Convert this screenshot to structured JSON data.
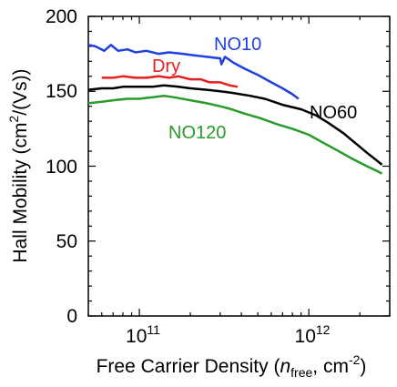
{
  "chart_data": {
    "type": "line",
    "xscale": "log",
    "xlim": [
      50000000000.0,
      3000000000000.0
    ],
    "ylim": [
      0,
      200
    ],
    "grid": false,
    "xlabel": {
      "prefix": "Free Carrier Density (",
      "var": "n",
      "sub": "free",
      "mid": ", cm",
      "sup": "-2",
      "suffix": ")"
    },
    "ylabel": {
      "prefix": "Hall Mobility (cm",
      "sup": "2",
      "suffix": "/(Vs))"
    },
    "yticks": [
      "0",
      "50",
      "100",
      "150",
      "200"
    ],
    "xticks": [
      {
        "base": "10",
        "exp": "11",
        "value": 100000000000.0
      },
      {
        "base": "10",
        "exp": "12",
        "value": 1000000000000.0
      }
    ],
    "series": [
      {
        "name": "NO10",
        "color": "#1f3fe0",
        "points": [
          [
            50000000000.0,
            181
          ],
          [
            55000000000.0,
            180
          ],
          [
            62000000000.0,
            177
          ],
          [
            68000000000.0,
            181
          ],
          [
            75000000000.0,
            177
          ],
          [
            85000000000.0,
            178
          ],
          [
            95000000000.0,
            176
          ],
          [
            110000000000.0,
            177
          ],
          [
            130000000000.0,
            175
          ],
          [
            150000000000.0,
            176
          ],
          [
            180000000000.0,
            175
          ],
          [
            210000000000.0,
            174
          ],
          [
            250000000000.0,
            173
          ],
          [
            300000000000.0,
            172
          ],
          [
            305000000000.0,
            168
          ],
          [
            320000000000.0,
            173
          ],
          [
            360000000000.0,
            169
          ],
          [
            420000000000.0,
            165
          ],
          [
            500000000000.0,
            161
          ],
          [
            600000000000.0,
            156
          ],
          [
            700000000000.0,
            152
          ],
          [
            800000000000.0,
            148
          ],
          [
            870000000000.0,
            145
          ]
        ]
      },
      {
        "name": "Dry",
        "color": "#e62020",
        "points": [
          [
            60000000000.0,
            159
          ],
          [
            70000000000.0,
            159
          ],
          [
            80000000000.0,
            160
          ],
          [
            95000000000.0,
            159
          ],
          [
            110000000000.0,
            159
          ],
          [
            130000000000.0,
            160
          ],
          [
            150000000000.0,
            159
          ],
          [
            170000000000.0,
            160
          ],
          [
            200000000000.0,
            158
          ],
          [
            230000000000.0,
            158
          ],
          [
            260000000000.0,
            156
          ],
          [
            300000000000.0,
            156
          ],
          [
            340000000000.0,
            154
          ],
          [
            380000000000.0,
            153
          ]
        ]
      },
      {
        "name": "NO60",
        "color": "#000000",
        "points": [
          [
            50000000000.0,
            151
          ],
          [
            60000000000.0,
            152
          ],
          [
            70000000000.0,
            152
          ],
          [
            80000000000.0,
            153
          ],
          [
            100000000000.0,
            153
          ],
          [
            120000000000.0,
            153
          ],
          [
            140000000000.0,
            154
          ],
          [
            170000000000.0,
            153
          ],
          [
            200000000000.0,
            152
          ],
          [
            250000000000.0,
            151
          ],
          [
            300000000000.0,
            150
          ],
          [
            350000000000.0,
            149
          ],
          [
            450000000000.0,
            147
          ],
          [
            550000000000.0,
            145
          ],
          [
            700000000000.0,
            141
          ],
          [
            900000000000.0,
            138
          ],
          [
            1100000000000.0,
            134
          ],
          [
            1300000000000.0,
            129
          ],
          [
            1600000000000.0,
            122
          ],
          [
            1900000000000.0,
            115
          ],
          [
            2200000000000.0,
            109
          ],
          [
            2500000000000.0,
            104
          ],
          [
            2700000000000.0,
            101
          ]
        ]
      },
      {
        "name": "NO120",
        "color": "#2a9a2a",
        "points": [
          [
            50000000000.0,
            142
          ],
          [
            60000000000.0,
            143
          ],
          [
            70000000000.0,
            144
          ],
          [
            85000000000.0,
            145
          ],
          [
            100000000000.0,
            145
          ],
          [
            120000000000.0,
            146
          ],
          [
            140000000000.0,
            147
          ],
          [
            160000000000.0,
            146
          ],
          [
            200000000000.0,
            144
          ],
          [
            250000000000.0,
            142
          ],
          [
            300000000000.0,
            140
          ],
          [
            350000000000.0,
            138
          ],
          [
            420000000000.0,
            135
          ],
          [
            520000000000.0,
            132
          ],
          [
            650000000000.0,
            128
          ],
          [
            800000000000.0,
            125
          ],
          [
            1000000000000.0,
            121
          ],
          [
            1200000000000.0,
            116
          ],
          [
            1500000000000.0,
            110
          ],
          [
            1800000000000.0,
            105
          ],
          [
            2200000000000.0,
            100
          ],
          [
            2500000000000.0,
            97
          ],
          [
            2700000000000.0,
            95
          ]
        ]
      }
    ]
  }
}
